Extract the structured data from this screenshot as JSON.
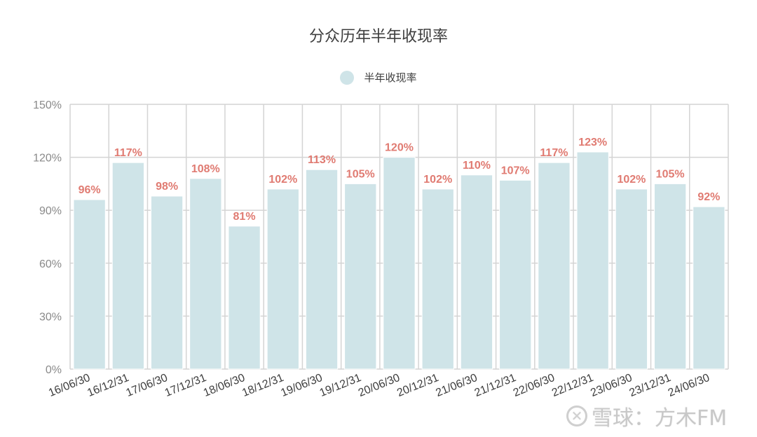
{
  "chart_data": {
    "type": "bar",
    "title": "分众历年半年收现率",
    "legend": [
      "半年收现率"
    ],
    "legend_position": "top",
    "xlabel": "",
    "ylabel": "",
    "ylim": [
      0,
      150
    ],
    "yticks": [
      "0%",
      "30%",
      "60%",
      "90%",
      "120%",
      "150%"
    ],
    "grid": true,
    "categories": [
      "16/06/30",
      "16/12/31",
      "17/06/30",
      "17/12/31",
      "18/06/30",
      "18/12/31",
      "19/06/30",
      "19/12/31",
      "20/06/30",
      "20/12/31",
      "21/06/30",
      "21/12/31",
      "22/06/30",
      "22/12/31",
      "23/06/30",
      "23/12/31",
      "24/06/30"
    ],
    "series": [
      {
        "name": "半年收现率",
        "values": [
          96,
          117,
          98,
          108,
          81,
          102,
          113,
          105,
          120,
          102,
          110,
          107,
          117,
          123,
          102,
          105,
          92
        ]
      }
    ],
    "data_labels": [
      "96%",
      "117%",
      "98%",
      "108%",
      "81%",
      "102%",
      "113%",
      "105%",
      "120%",
      "102%",
      "110%",
      "107%",
      "117%",
      "123%",
      "102%",
      "105%",
      "92%"
    ],
    "colors": {
      "bar": "#cfe4e8",
      "label": "#e07b72",
      "grid": "#d4d4d4",
      "axis_text": "#8a8a8a",
      "tick_text": "#3d3d3d"
    }
  },
  "watermark": {
    "icon": "snowball-icon",
    "text": "雪球：方木FM"
  }
}
